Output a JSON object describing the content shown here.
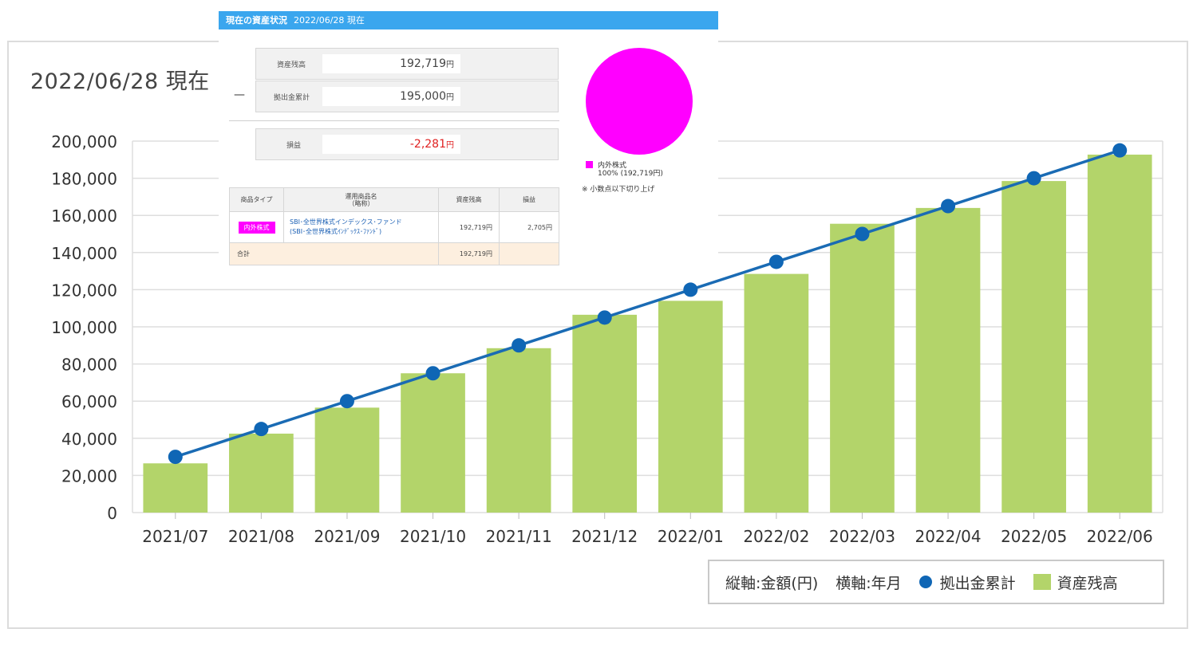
{
  "chart": {
    "date_label": "2022/06/28 現在",
    "legend": {
      "y_axis_note": "縦軸:金額(円)",
      "x_axis_note": "横軸:年月",
      "line_label": "拠出金累計",
      "bar_label": "資産残高"
    }
  },
  "colors": {
    "bar": "#b3d46a",
    "line": "#1a6bb4",
    "marker": "#0f66b5",
    "panel_header": "#3aa6ee",
    "pie": "#ff00ff",
    "loss": "#e02020"
  },
  "chart_data": {
    "type": "bar",
    "categories": [
      "2021/07",
      "2021/08",
      "2021/09",
      "2021/10",
      "2021/11",
      "2021/12",
      "2022/01",
      "2022/02",
      "2022/03",
      "2022/04",
      "2022/05",
      "2022/06"
    ],
    "series": [
      {
        "name": "資産残高",
        "type": "bar",
        "values": [
          26500,
          42500,
          56500,
          75000,
          88500,
          106500,
          114000,
          128500,
          155500,
          164000,
          178500,
          192719
        ]
      },
      {
        "name": "拠出金累計",
        "type": "line",
        "values": [
          30000,
          45000,
          60000,
          75000,
          90000,
          105000,
          120000,
          135000,
          150000,
          165000,
          180000,
          195000
        ]
      }
    ],
    "yticks": [
      "0",
      "20,000",
      "40,000",
      "60,000",
      "80,000",
      "100,000",
      "120,000",
      "140,000",
      "160,000",
      "180,000",
      "200,000"
    ],
    "ylim": [
      0,
      200000
    ],
    "grid": true,
    "legend_position": "bottom-right"
  },
  "panel": {
    "header_title": "現在の資産状況",
    "header_date": "2022/06/28 現在",
    "summary": {
      "balance_label": "資産残高",
      "balance_value": "192,719",
      "contrib_label": "拠出金累計",
      "contrib_value": "195,000",
      "pl_label": "損益",
      "pl_value": "-2,281",
      "yen": "円",
      "minus": "—"
    },
    "table": {
      "headers": [
        "商品タイプ",
        "運用商品名",
        "（略称）",
        "資産残高",
        "損益"
      ],
      "row": {
        "type_tag": "内外株式",
        "fund_line1": "SBI･全世界株式インデックス･ファンド",
        "fund_line2": "(SBI･全世界株式ｲﾝﾃﾞｯｸｽ･ﾌｧﾝﾄﾞ)",
        "balance": "192,719円",
        "pl": "2,705円"
      },
      "total": {
        "label": "合計",
        "balance": "192,719円"
      }
    },
    "pie_chart": {
      "slice_label": "内外株式",
      "slice_detail": "100% (192,719円)",
      "note": "※ 小数点以下切り上げ",
      "share": 1.0
    }
  }
}
